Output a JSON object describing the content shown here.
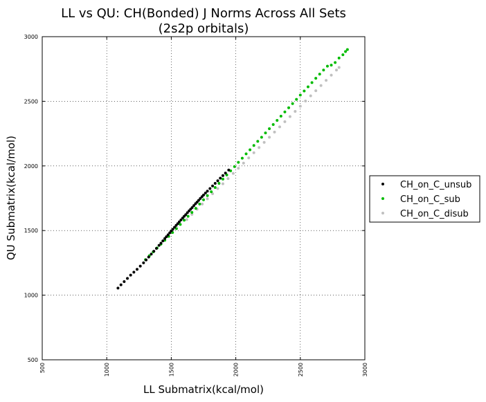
{
  "chart_data": {
    "type": "scatter",
    "title_line1": "LL vs QU: CH(Bonded) J Norms Across All Sets",
    "title_line2": "(2s2p orbitals)",
    "xlabel": "LL Submatrix(kcal/mol)",
    "ylabel": "QU Submatrix(kcal/mol)",
    "xlim": [
      500,
      3000
    ],
    "ylim": [
      500,
      3000
    ],
    "xticks": [
      500,
      1000,
      1500,
      2000,
      2500,
      3000
    ],
    "yticks": [
      500,
      1000,
      1500,
      2000,
      2500,
      3000
    ],
    "xtick_labels": [
      "500",
      "1000",
      "1500",
      "2000",
      "2500",
      "3000"
    ],
    "ytick_labels": [
      "500",
      "1000",
      "1500",
      "2000",
      "2500",
      "3000"
    ],
    "grid": true,
    "legend_position": "outside-right",
    "series": [
      {
        "name": "CH_on_C_unsub",
        "color": "#000000",
        "x": [
          1087,
          1110,
          1135,
          1160,
          1185,
          1210,
          1235,
          1260,
          1285,
          1305,
          1325,
          1345,
          1365,
          1385,
          1405,
          1420,
          1435,
          1450,
          1462,
          1475,
          1488,
          1500,
          1512,
          1525,
          1538,
          1550,
          1562,
          1575,
          1588,
          1600,
          1612,
          1625,
          1638,
          1650,
          1662,
          1675,
          1688,
          1700,
          1712,
          1725,
          1738,
          1750,
          1765,
          1780,
          1800,
          1820,
          1840,
          1860,
          1880,
          1900,
          1920,
          1945
        ],
        "y": [
          1055,
          1080,
          1105,
          1130,
          1155,
          1178,
          1200,
          1225,
          1250,
          1272,
          1295,
          1318,
          1340,
          1362,
          1385,
          1402,
          1420,
          1438,
          1452,
          1467,
          1482,
          1497,
          1510,
          1525,
          1540,
          1553,
          1567,
          1582,
          1597,
          1610,
          1623,
          1638,
          1652,
          1665,
          1678,
          1693,
          1708,
          1720,
          1733,
          1748,
          1762,
          1775,
          1790,
          1805,
          1825,
          1845,
          1865,
          1885,
          1905,
          1925,
          1945,
          1968
        ]
      },
      {
        "name": "CH_on_C_sub",
        "color": "#00bb00",
        "x": [
          1300,
          1330,
          1360,
          1390,
          1420,
          1450,
          1480,
          1510,
          1540,
          1570,
          1600,
          1630,
          1660,
          1690,
          1720,
          1750,
          1780,
          1810,
          1840,
          1870,
          1900,
          1930,
          1960,
          1990,
          2020,
          2050,
          2080,
          2110,
          2140,
          2170,
          2200,
          2230,
          2260,
          2290,
          2320,
          2350,
          2380,
          2410,
          2440,
          2470,
          2500,
          2530,
          2560,
          2590,
          2620,
          2650,
          2680,
          2710,
          2740,
          2770,
          2800,
          2830,
          2850,
          2865
        ],
        "y": [
          1275,
          1305,
          1335,
          1365,
          1395,
          1425,
          1455,
          1485,
          1515,
          1547,
          1580,
          1610,
          1640,
          1672,
          1705,
          1738,
          1770,
          1800,
          1833,
          1865,
          1898,
          1930,
          1962,
          1995,
          2028,
          2060,
          2093,
          2125,
          2158,
          2190,
          2222,
          2255,
          2288,
          2320,
          2352,
          2385,
          2418,
          2450,
          2482,
          2515,
          2548,
          2580,
          2612,
          2645,
          2678,
          2710,
          2742,
          2772,
          2780,
          2800,
          2835,
          2860,
          2885,
          2900
        ]
      },
      {
        "name": "CH_on_C_disub",
        "color": "#c0c0c0",
        "x": [
          1620,
          1660,
          1700,
          1740,
          1780,
          1820,
          1860,
          1900,
          1940,
          1980,
          2020,
          2060,
          2100,
          2140,
          2180,
          2220,
          2260,
          2300,
          2340,
          2380,
          2420,
          2460,
          2500,
          2540,
          2580,
          2620,
          2660,
          2700,
          2740,
          2780,
          2800
        ],
        "y": [
          1585,
          1625,
          1665,
          1705,
          1745,
          1785,
          1825,
          1862,
          1902,
          1942,
          1982,
          2022,
          2062,
          2102,
          2142,
          2182,
          2222,
          2262,
          2302,
          2342,
          2382,
          2422,
          2462,
          2502,
          2542,
          2582,
          2622,
          2662,
          2702,
          2742,
          2762
        ]
      }
    ]
  }
}
